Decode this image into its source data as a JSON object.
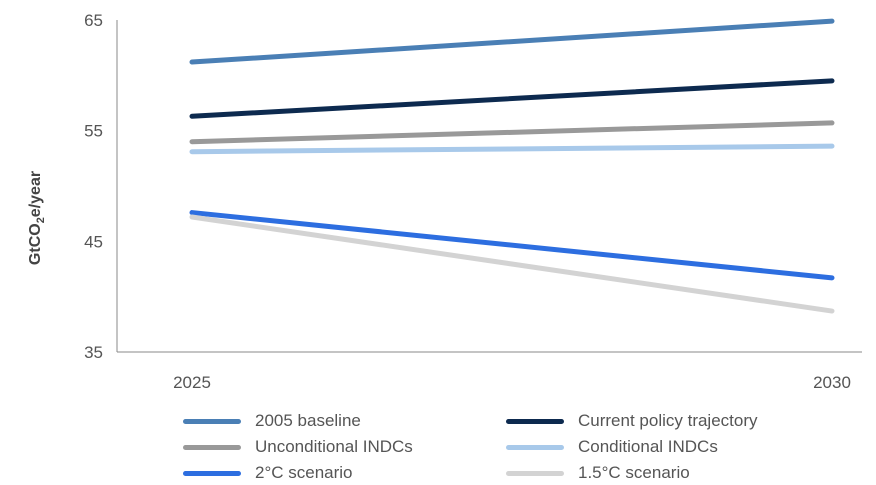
{
  "chart_data": {
    "type": "line",
    "title": "",
    "xlabel": "",
    "ylabel": "GtCO2e/year",
    "ylabel_parts": {
      "main": "GtCO",
      "subscript": "2",
      "suffix": "e/year"
    },
    "x": [
      "2025",
      "2030"
    ],
    "ylim": [
      35,
      65
    ],
    "yticks": [
      35,
      45,
      55,
      65
    ],
    "grid": false,
    "legend_position": "bottom",
    "series": [
      {
        "name": "2005 baseline",
        "values": [
          61.2,
          64.9
        ],
        "color": "#4a7fb5"
      },
      {
        "name": "Current policy trajectory",
        "values": [
          56.3,
          59.5
        ],
        "color": "#0d2a4f"
      },
      {
        "name": "Unconditional INDCs",
        "values": [
          54.0,
          55.7
        ],
        "color": "#999999"
      },
      {
        "name": "Conditional INDCs",
        "values": [
          53.1,
          53.6
        ],
        "color": "#a8c9ea"
      },
      {
        "name": "2°C scenario",
        "values": [
          47.6,
          41.7
        ],
        "color": "#2d6ee0"
      },
      {
        "name": "1.5°C scenario",
        "values": [
          47.2,
          38.7
        ],
        "color": "#d3d3d3"
      }
    ]
  }
}
